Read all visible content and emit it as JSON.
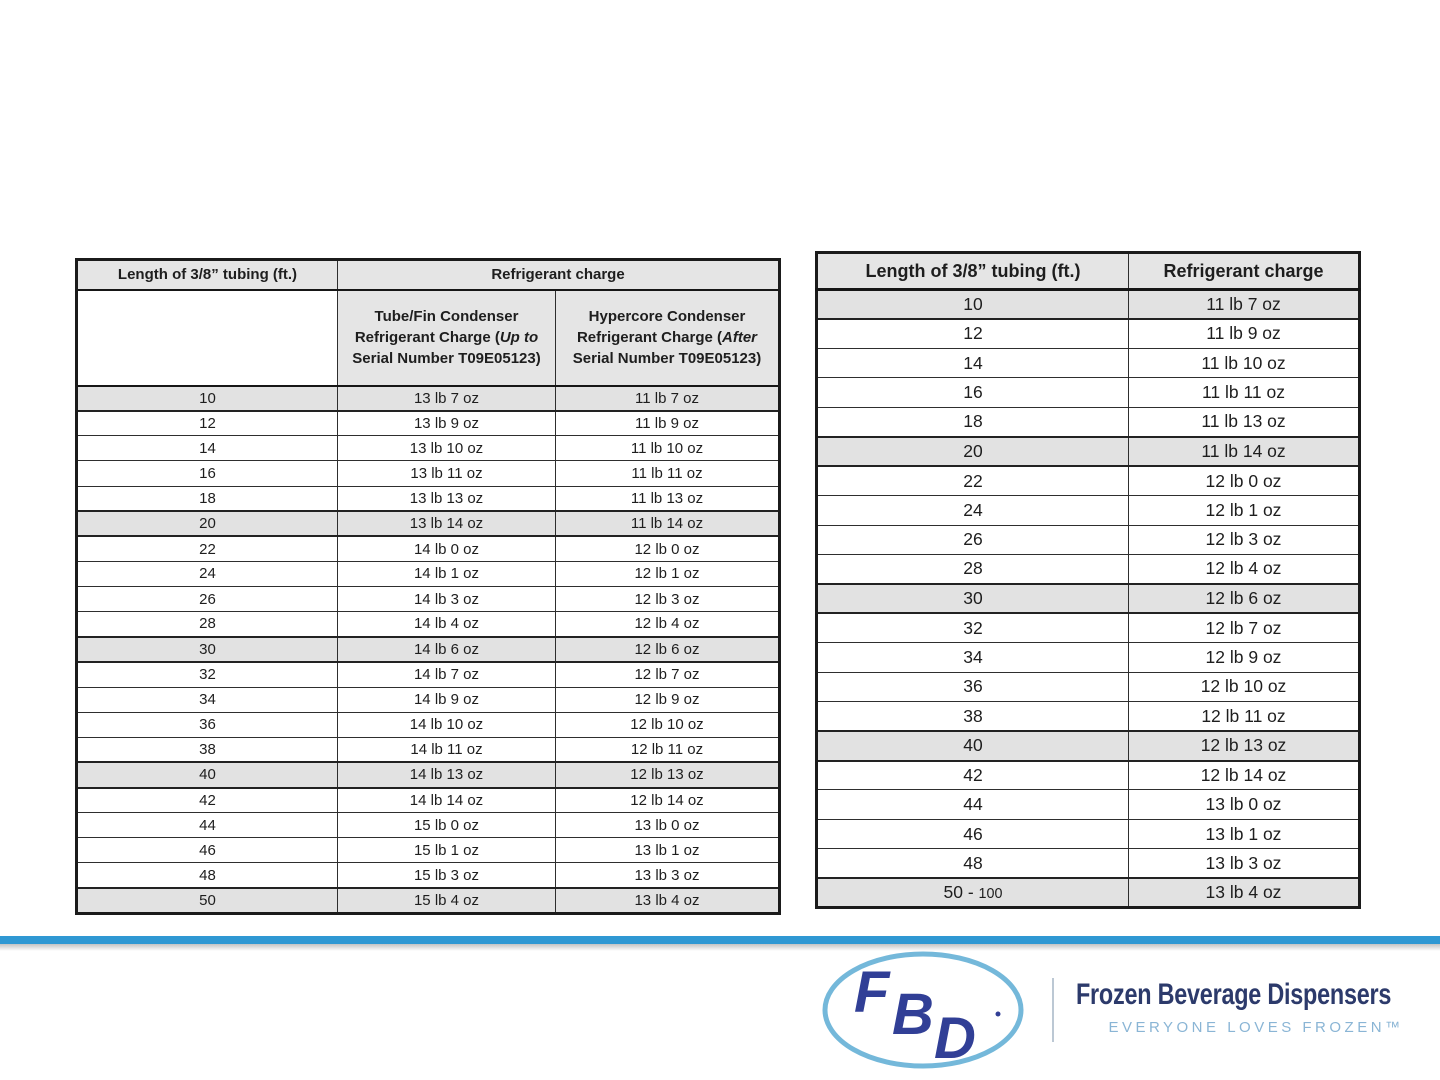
{
  "left_table": {
    "header": {
      "length_label": "Length of 3/8” tubing (ft.)",
      "charge_label": "Refrigerant charge"
    },
    "subheaders": [
      {
        "pre": "Tube/Fin Condenser Refrigerant Charge (",
        "italic": "Up to",
        "post": " Serial Number T09E05123)"
      },
      {
        "pre": "Hypercore Condenser Refrigerant Charge (",
        "italic": "After",
        "post": " Serial Number T09E05123)"
      }
    ],
    "rows": [
      {
        "len": "10",
        "tubefin": "13 lb 7 oz",
        "hypercore": "11 lb 7 oz",
        "shaded": true
      },
      {
        "len": "12",
        "tubefin": "13 lb 9 oz",
        "hypercore": "11 lb 9 oz",
        "shaded": false
      },
      {
        "len": "14",
        "tubefin": "13 lb 10 oz",
        "hypercore": "11 lb 10 oz",
        "shaded": false
      },
      {
        "len": "16",
        "tubefin": "13 lb 11 oz",
        "hypercore": "11 lb 11 oz",
        "shaded": false
      },
      {
        "len": "18",
        "tubefin": "13 lb 13 oz",
        "hypercore": "11 lb 13 oz",
        "shaded": false
      },
      {
        "len": "20",
        "tubefin": "13 lb 14 oz",
        "hypercore": "11 lb 14 oz",
        "shaded": true
      },
      {
        "len": "22",
        "tubefin": "14 lb 0 oz",
        "hypercore": "12 lb 0 oz",
        "shaded": false
      },
      {
        "len": "24",
        "tubefin": "14 lb 1 oz",
        "hypercore": "12 lb 1 oz",
        "shaded": false
      },
      {
        "len": "26",
        "tubefin": "14 lb 3 oz",
        "hypercore": "12 lb 3 oz",
        "shaded": false
      },
      {
        "len": "28",
        "tubefin": "14 lb 4 oz",
        "hypercore": "12 lb 4 oz",
        "shaded": false
      },
      {
        "len": "30",
        "tubefin": "14 lb 6 oz",
        "hypercore": "12 lb 6 oz",
        "shaded": true
      },
      {
        "len": "32",
        "tubefin": "14 lb 7 oz",
        "hypercore": "12 lb 7 oz",
        "shaded": false
      },
      {
        "len": "34",
        "tubefin": "14 lb 9 oz",
        "hypercore": "12 lb 9 oz",
        "shaded": false
      },
      {
        "len": "36",
        "tubefin": "14 lb 10 oz",
        "hypercore": "12 lb 10 oz",
        "shaded": false
      },
      {
        "len": "38",
        "tubefin": "14 lb 11 oz",
        "hypercore": "12 lb 11 oz",
        "shaded": false
      },
      {
        "len": "40",
        "tubefin": "14 lb 13 oz",
        "hypercore": "12 lb 13 oz",
        "shaded": true
      },
      {
        "len": "42",
        "tubefin": "14 lb 14 oz",
        "hypercore": "12 lb 14 oz",
        "shaded": false
      },
      {
        "len": "44",
        "tubefin": "15 lb 0 oz",
        "hypercore": "13 lb 0 oz",
        "shaded": false
      },
      {
        "len": "46",
        "tubefin": "15 lb 1 oz",
        "hypercore": "13 lb 1 oz",
        "shaded": false
      },
      {
        "len": "48",
        "tubefin": "15 lb 3 oz",
        "hypercore": "13 lb 3 oz",
        "shaded": false
      },
      {
        "len": "50",
        "tubefin": "15 lb 4 oz",
        "hypercore": "13 lb 4 oz",
        "shaded": true
      }
    ]
  },
  "right_table": {
    "header": {
      "length_label": "Length of 3/8” tubing (ft.)",
      "charge_label": "Refrigerant charge"
    },
    "rows": [
      {
        "len": "10",
        "charge": "11 lb 7 oz",
        "shaded": true
      },
      {
        "len": "12",
        "charge": "11 lb 9 oz",
        "shaded": false
      },
      {
        "len": "14",
        "charge": "11 lb 10 oz",
        "shaded": false
      },
      {
        "len": "16",
        "charge": "11 lb 11 oz",
        "shaded": false
      },
      {
        "len": "18",
        "charge": "11 lb 13 oz",
        "shaded": false
      },
      {
        "len": "20",
        "charge": "11 lb 14 oz",
        "shaded": true
      },
      {
        "len": "22",
        "charge": "12 lb 0 oz",
        "shaded": false
      },
      {
        "len": "24",
        "charge": "12 lb 1 oz",
        "shaded": false
      },
      {
        "len": "26",
        "charge": "12 lb 3 oz",
        "shaded": false
      },
      {
        "len": "28",
        "charge": "12 lb 4 oz",
        "shaded": false
      },
      {
        "len": "30",
        "charge": "12 lb 6 oz",
        "shaded": true
      },
      {
        "len": "32",
        "charge": "12 lb 7 oz",
        "shaded": false
      },
      {
        "len": "34",
        "charge": "12 lb 9 oz",
        "shaded": false
      },
      {
        "len": "36",
        "charge": "12 lb 10 oz",
        "shaded": false
      },
      {
        "len": "38",
        "charge": "12 lb 11 oz",
        "shaded": false
      },
      {
        "len": "40",
        "charge": "12 lb 13 oz",
        "shaded": true
      },
      {
        "len": "42",
        "charge": "12 lb 14 oz",
        "shaded": false
      },
      {
        "len": "44",
        "charge": "13 lb 0 oz",
        "shaded": false
      },
      {
        "len": "46",
        "charge": "13 lb 1 oz",
        "shaded": false
      },
      {
        "len": "48",
        "charge": "13 lb 3 oz",
        "shaded": false
      },
      {
        "len": "50 - ",
        "len_small": "100",
        "charge": "13 lb 4 oz",
        "shaded": true
      }
    ]
  },
  "footer": {
    "bar_color": "#2f98d3",
    "logo": {
      "letter_f": "F",
      "letter_b": "B",
      "letter_d": "D",
      "oval_color": "#74b8da",
      "letter_color": "#313f96"
    },
    "brand": {
      "title": "Frozen Beverage Dispensers",
      "tagline": "EVERYONE LOVES FROZEN™",
      "title_color": "#2c3a6b",
      "tagline_color": "#8ab5d5"
    }
  }
}
